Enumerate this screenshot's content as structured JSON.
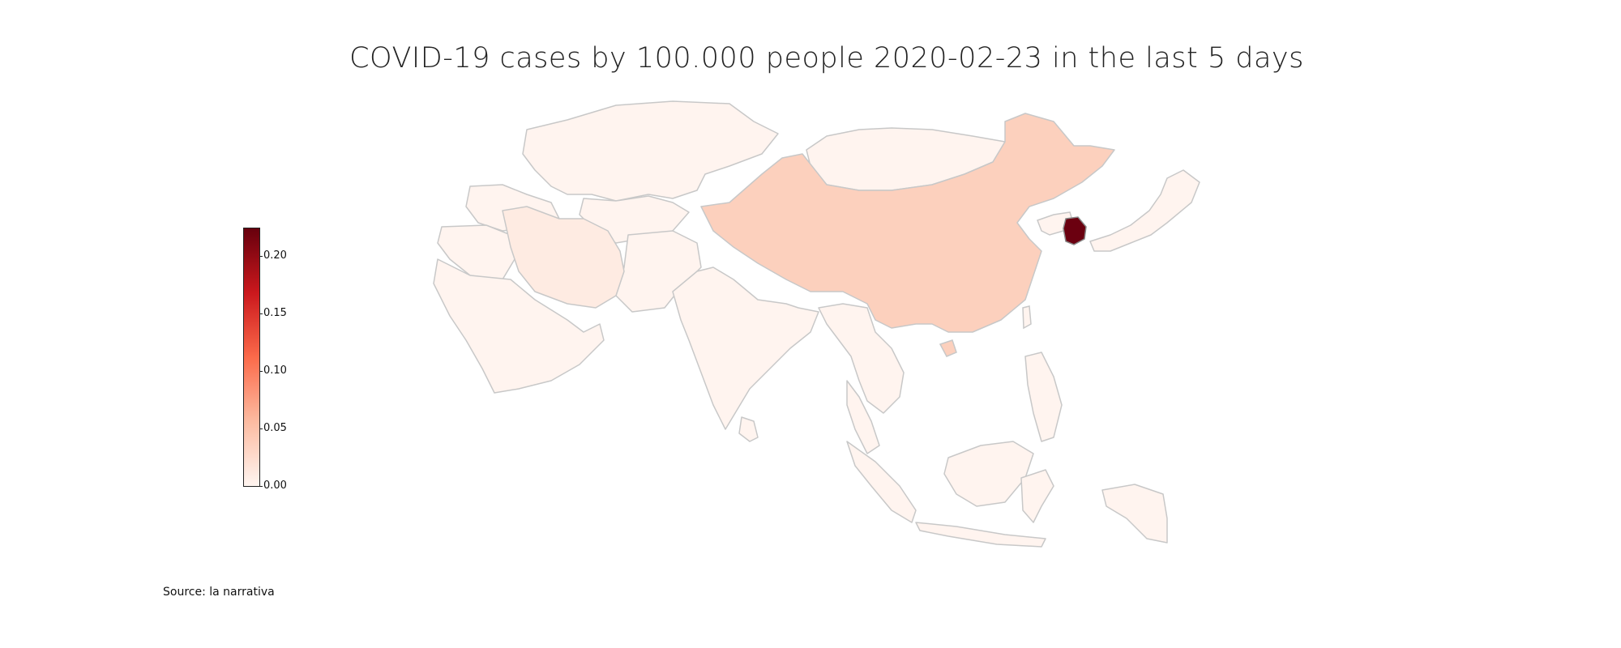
{
  "title": "COVID-19 cases by 100.000 people 2020-02-23 in the last 5 days",
  "source": "Source: la narrativa",
  "colorbar": {
    "min": 0.0,
    "max": 0.225,
    "colormap": "Reds",
    "ticks": [
      "0.00",
      "0.05",
      "0.10",
      "0.15",
      "0.20"
    ]
  },
  "colors": {
    "border": "#c8c8c8",
    "zero": "#fff5f0",
    "china": "#fcd0bd",
    "iran": "#feebe2",
    "korea": "#6b0010",
    "low": "#fff1ea"
  },
  "regions": [
    {
      "name": "South Korea",
      "value": 0.22
    },
    {
      "name": "China",
      "value": 0.05
    },
    {
      "name": "Iran",
      "value": 0.01
    },
    {
      "name": "Japan",
      "value": 0.005
    },
    {
      "name": "Other Asian countries",
      "value": 0.0
    }
  ]
}
